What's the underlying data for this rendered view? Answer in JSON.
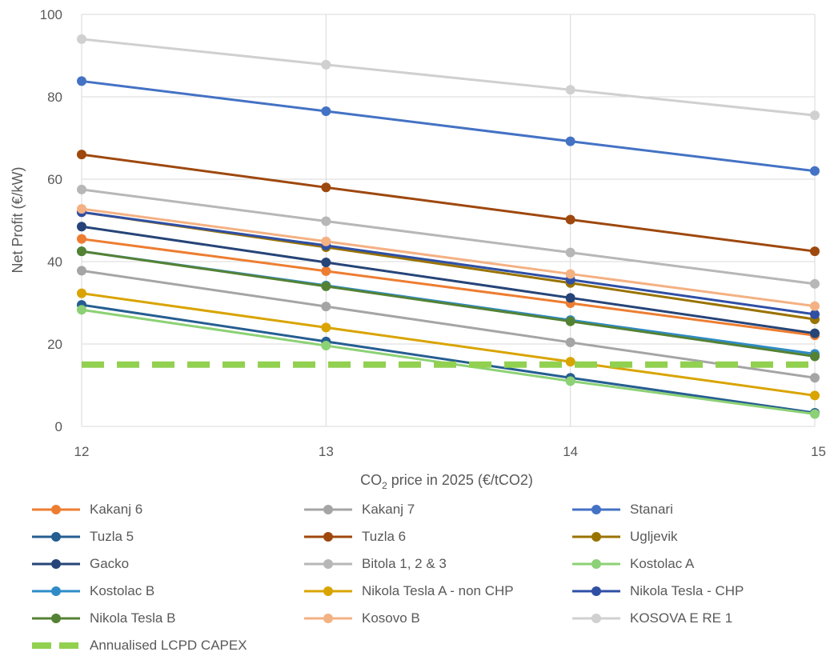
{
  "chart_data": {
    "type": "line",
    "xlabel_parts": [
      "CO",
      "2",
      " price in 2025 (€/tCO2)"
    ],
    "ylabel": "Net Profit (€/kW)",
    "x": [
      12,
      13,
      14,
      15
    ],
    "xlim": [
      12,
      15
    ],
    "ylim": [
      0,
      100
    ],
    "x_ticks": [
      "12",
      "13",
      "14",
      "15"
    ],
    "y_ticks": [
      "0",
      "20",
      "40",
      "60",
      "80",
      "100"
    ],
    "grid": true,
    "legend_position": "bottom",
    "series": [
      {
        "name": "Kakanj 6",
        "color": "#ED7D31",
        "values": [
          45.5,
          37.7,
          29.9,
          22.1
        ]
      },
      {
        "name": "Kakanj 7",
        "color": "#A5A5A5",
        "values": [
          37.8,
          29.1,
          20.4,
          11.8
        ]
      },
      {
        "name": "Stanari",
        "color": "#4472C4",
        "values": [
          83.8,
          76.5,
          69.2,
          62.0
        ]
      },
      {
        "name": "Tuzla 5",
        "color": "#255E91",
        "values": [
          29.5,
          20.6,
          11.8,
          3.3
        ]
      },
      {
        "name": "Tuzla 6",
        "color": "#9E480E",
        "values": [
          66.0,
          58.0,
          50.2,
          42.5
        ]
      },
      {
        "name": "Ugljevik",
        "color": "#997300",
        "values": [
          52.0,
          43.5,
          34.8,
          26.0
        ]
      },
      {
        "name": "Gacko",
        "color": "#264478",
        "values": [
          48.5,
          39.8,
          31.2,
          22.6
        ]
      },
      {
        "name": "Bitola 1, 2 & 3",
        "color": "#B7B7B7",
        "values": [
          57.5,
          49.8,
          42.2,
          34.6
        ]
      },
      {
        "name": "Kostolac A",
        "color": "#8CD175",
        "values": [
          28.3,
          19.6,
          11.0,
          3.0
        ]
      },
      {
        "name": "Kostolac B",
        "color": "#2E8BC7",
        "values": [
          42.5,
          34.2,
          25.8,
          17.6
        ]
      },
      {
        "name": "Nikola Tesla A - non CHP",
        "color": "#D9A400",
        "values": [
          32.3,
          24.0,
          15.7,
          7.5
        ]
      },
      {
        "name": "Nikola Tesla - CHP",
        "color": "#2F4FA5",
        "values": [
          52.0,
          43.9,
          35.6,
          27.2
        ]
      },
      {
        "name": "Nikola Tesla B",
        "color": "#548235",
        "values": [
          42.5,
          34.0,
          25.5,
          17.0
        ]
      },
      {
        "name": "Kosovo B",
        "color": "#F4B183",
        "values": [
          52.8,
          44.9,
          37.0,
          29.2
        ]
      },
      {
        "name": "KOSOVA E RE 1",
        "color": "#D0D0D0",
        "values": [
          94.0,
          87.8,
          81.7,
          75.5
        ]
      },
      {
        "name": "Annualised LCPD CAPEX",
        "color": "#92D050",
        "values": [
          15.0,
          15.0,
          15.0,
          15.0
        ],
        "dashed": true
      }
    ]
  }
}
